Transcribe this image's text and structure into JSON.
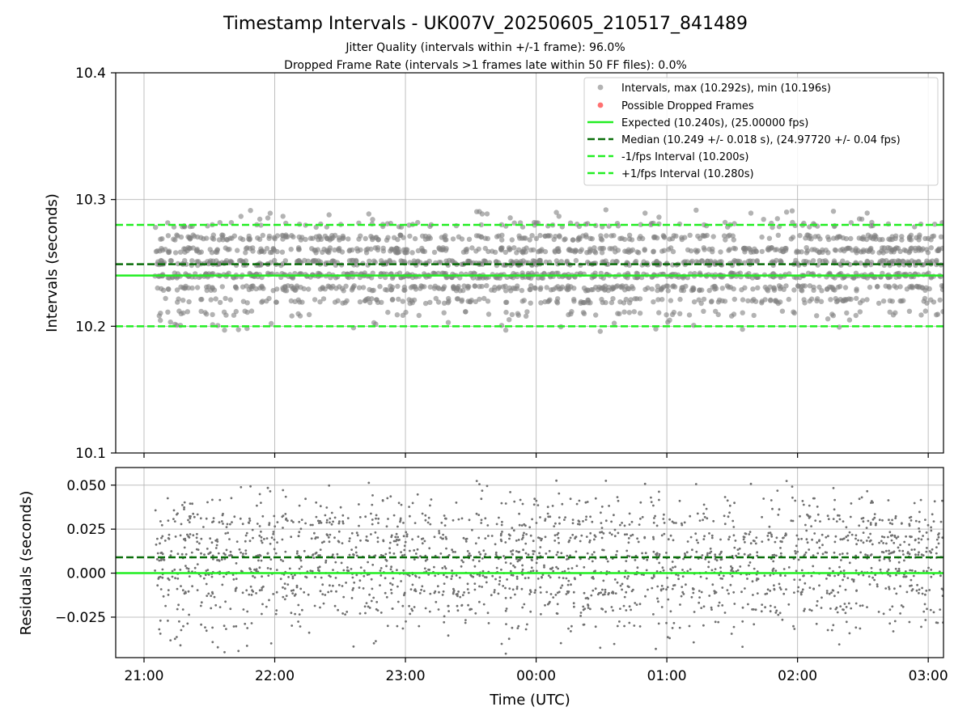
{
  "figure": {
    "title": "Timestamp Intervals - UK007V_20250605_210517_841489",
    "subtitle_1": "Jitter Quality (intervals within +/-1 frame): 96.0%",
    "subtitle_2": "Dropped Frame Rate (intervals >1 frames late within 50 FF files): 0.0%"
  },
  "chart_data": [
    {
      "type": "scatter",
      "panel": "intervals",
      "ylabel": "Intervals (seconds)",
      "xlabel": "",
      "x_range": [
        "20:47",
        "03:07"
      ],
      "ylim": [
        10.1,
        10.4
      ],
      "yticks": [
        "10.1",
        "10.2",
        "10.3",
        "10.4"
      ],
      "xtick_positions": [
        "21:00",
        "22:00",
        "23:00",
        "00:00",
        "01:00",
        "02:00",
        "03:00"
      ],
      "grid": true,
      "legend_position": "top-right",
      "legend": [
        "Intervals, max (10.292s), min (10.196s)",
        "Possible Dropped Frames",
        "Expected (10.240s), (25.00000 fps)",
        "Median (10.249 +/- 0.018 s), (24.97720 +/- 0.04 fps)",
        "-1/fps Interval (10.200s)",
        "+1/fps Interval (10.280s)"
      ],
      "series": [
        {
          "name": "Intervals, max (10.292s), min (10.196s)",
          "marker": "circle",
          "color": "#808080",
          "x_start": "21:05",
          "x_end": "03:07",
          "count": 2100,
          "typical_values": [
            10.21,
            10.22,
            10.23,
            10.24,
            10.25,
            10.26,
            10.27,
            10.28
          ],
          "min": 10.196,
          "max": 10.292
        },
        {
          "name": "Possible Dropped Frames",
          "marker": "circle",
          "color": "#ff4d4d",
          "values": []
        }
      ],
      "reference_lines": [
        {
          "name": "Expected (10.240s), (25.00000 fps)",
          "y": 10.24,
          "style": "solid",
          "color": "#22ee22"
        },
        {
          "name": "Median (10.249 +/- 0.018 s), (24.97720 +/- 0.04 fps)",
          "y": 10.249,
          "style": "dashed",
          "color": "#0a6e0a"
        },
        {
          "name": "-1/fps Interval (10.200s)",
          "y": 10.2,
          "style": "dashed",
          "color": "#22ee22"
        },
        {
          "name": "+1/fps Interval (10.280s)",
          "y": 10.28,
          "style": "dashed",
          "color": "#22ee22"
        }
      ]
    },
    {
      "type": "scatter",
      "panel": "residuals",
      "ylabel": "Residuals (seconds)",
      "xlabel": "Time (UTC)",
      "x_range": [
        "20:47",
        "03:07"
      ],
      "ylim": [
        -0.048,
        0.06
      ],
      "yticks": [
        "−0.025",
        "0.000",
        "0.025",
        "0.050"
      ],
      "ytick_values": [
        -0.025,
        0.0,
        0.025,
        0.05
      ],
      "xticks": [
        "21:00",
        "22:00",
        "23:00",
        "00:00",
        "01:00",
        "02:00",
        "03:00"
      ],
      "grid": true,
      "series": [
        {
          "marker": "dot",
          "color": "#707070",
          "x_start": "21:05",
          "x_end": "03:07",
          "count": 2100,
          "min": -0.044,
          "max": 0.052
        }
      ],
      "reference_lines": [
        {
          "y": 0.0,
          "style": "solid",
          "color": "#22ee22"
        },
        {
          "y": 0.009,
          "style": "dashed",
          "color": "#0a6e0a"
        }
      ]
    }
  ]
}
